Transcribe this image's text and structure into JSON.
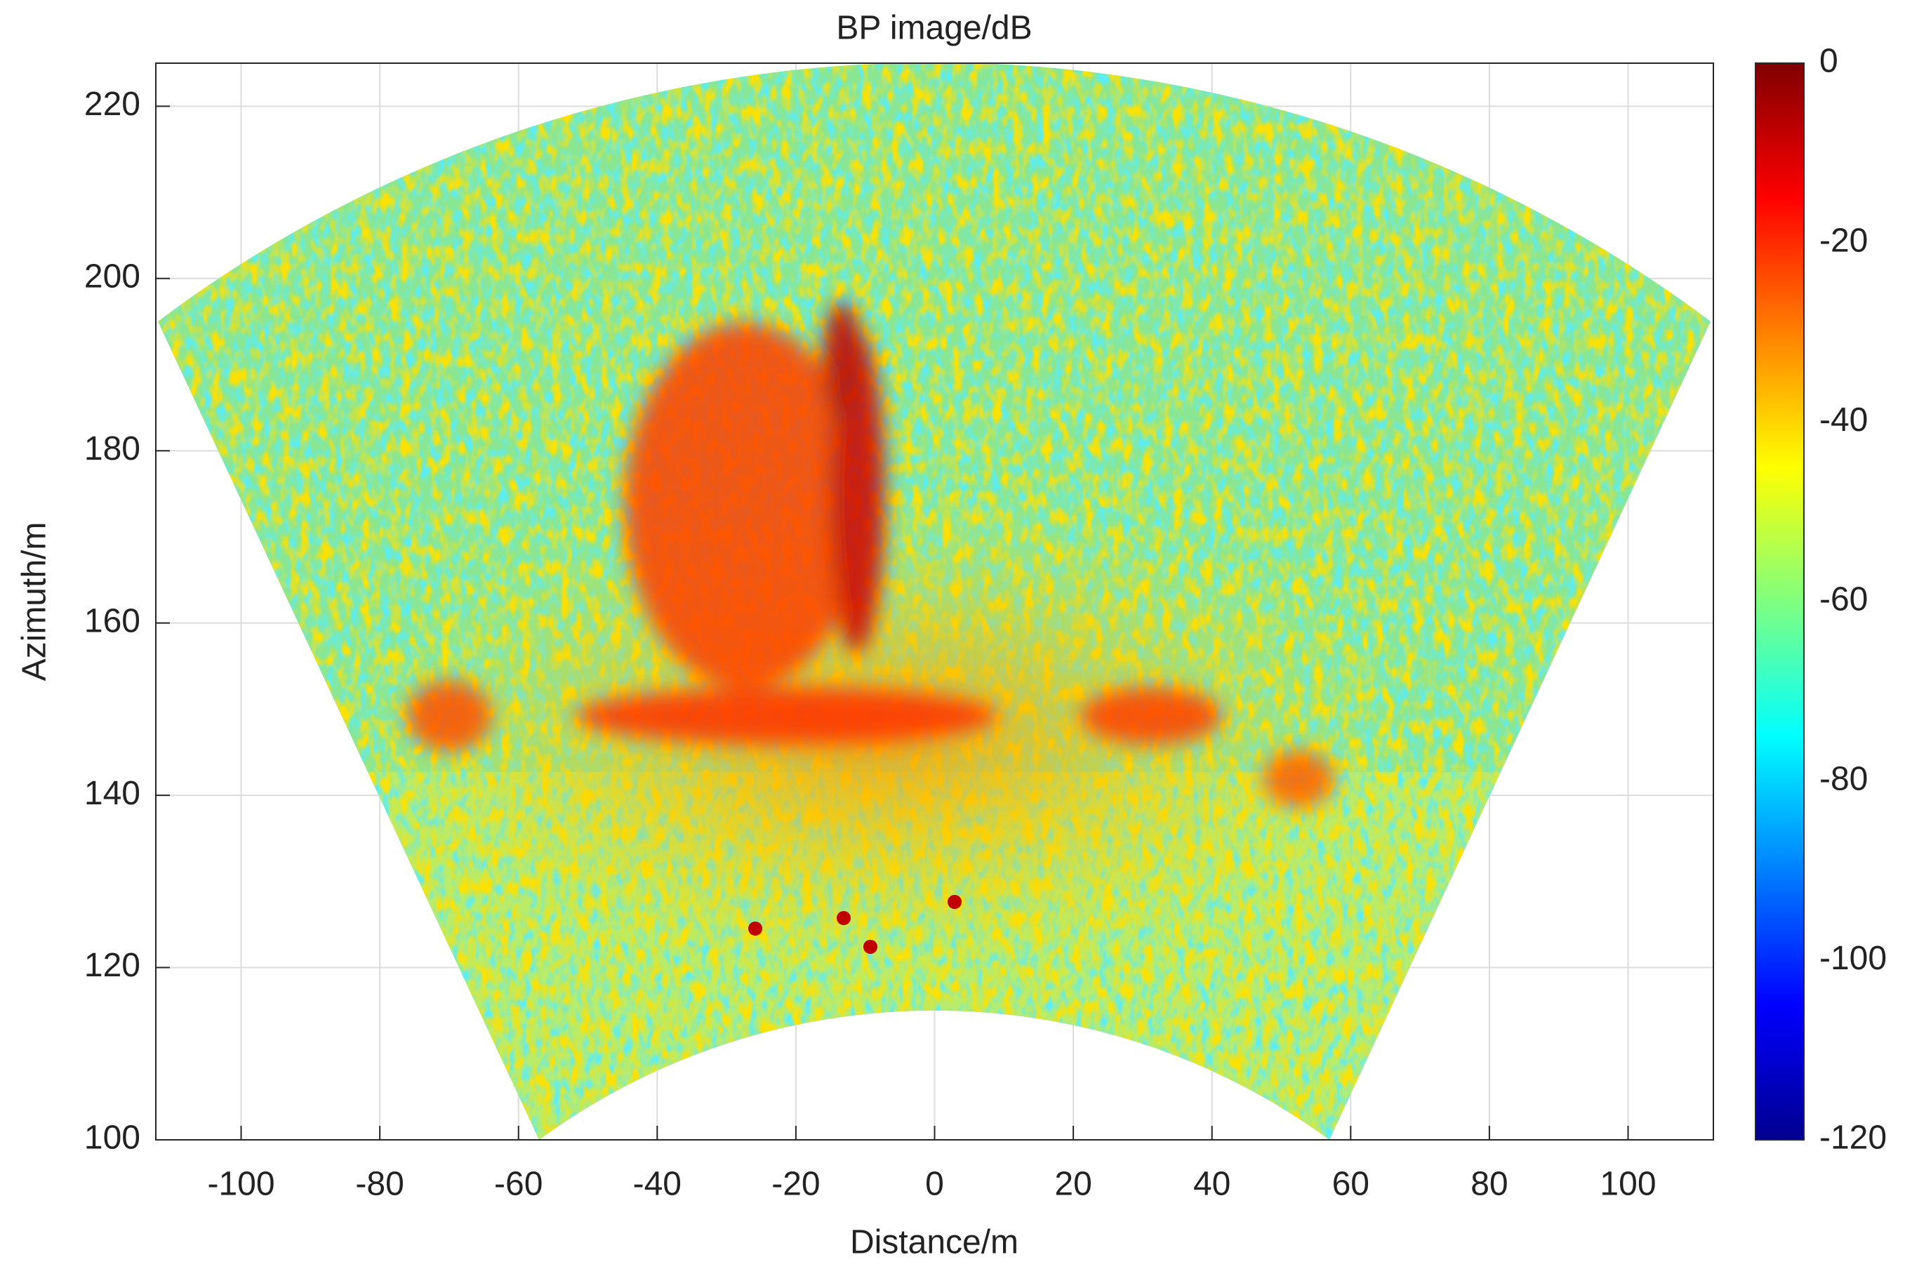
{
  "chart_data": {
    "type": "heatmap",
    "title": "BP image/dB",
    "xlabel": "Distance/m",
    "ylabel": "Azimuth/m",
    "xlim": [
      -112.3,
      112.3
    ],
    "xticks": [
      -100,
      -80,
      -60,
      -40,
      -20,
      0,
      20,
      40,
      60,
      80,
      100
    ],
    "ylim": [
      100,
      225
    ],
    "yticks": [
      100,
      120,
      140,
      160,
      180,
      200,
      220
    ],
    "colormap": "jet",
    "clim": [
      -120,
      0
    ],
    "cticks": [
      0,
      -20,
      -40,
      -60,
      -80,
      -100,
      -120
    ],
    "grid": true
  }
}
